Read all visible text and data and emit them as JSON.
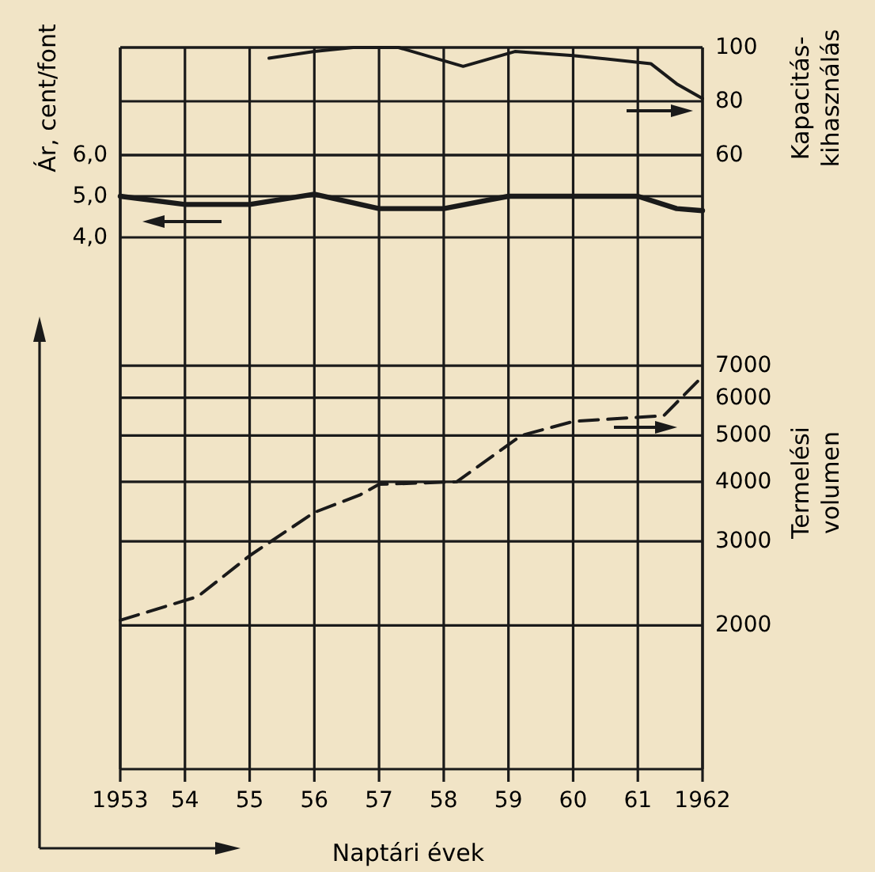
{
  "chart_data": [
    {
      "type": "line",
      "ylabel": "Ár, cent/font",
      "xlim": [
        1953,
        1962
      ],
      "ylim": [
        4,
        6
      ],
      "yticks": [
        {
          "value": 4,
          "label": "4,0"
        },
        {
          "value": 5,
          "label": "5,0"
        },
        {
          "value": 6,
          "label": "6,0"
        }
      ],
      "tick_labels": "y",
      "grid": true,
      "series": [
        {
          "color": "#1a1a1a",
          "line_style": "solid",
          "x": [
            1953,
            1954,
            1955,
            1956,
            1957,
            1958,
            1959,
            1960,
            1961,
            1961.6,
            1962
          ],
          "values": [
            5.0,
            4.8,
            4.8,
            5.05,
            4.7,
            4.7,
            5.0,
            5.0,
            5.0,
            4.7,
            4.65
          ]
        }
      ]
    },
    {
      "type": "line",
      "ylabel": "Kapacitás-\nkihasználás",
      "xlim": [
        1953,
        1962
      ],
      "ylim": [
        60,
        100
      ],
      "yticks": [
        60,
        80,
        100
      ],
      "tick_labels": "y",
      "grid": true,
      "series": [
        {
          "color": "#1a1a1a",
          "line_style": "solid",
          "x": [
            1955.3,
            1956,
            1956.6,
            1957.3,
            1958.3,
            1959.1,
            1960,
            1961.2,
            1961.6,
            1962
          ],
          "values": [
            96,
            98.5,
            100,
            100,
            93,
            98.5,
            97,
            94,
            86.5,
            81
          ]
        }
      ]
    },
    {
      "type": "line",
      "xlabel": "Naptári évek",
      "ylabel": "Termelési\nvolumen",
      "xlim": [
        1953,
        1962
      ],
      "xticks": [
        1953,
        {
          "value": 1954,
          "label": "54"
        },
        {
          "value": 1955,
          "label": "55"
        },
        {
          "value": 1956,
          "label": "56"
        },
        {
          "value": 1957,
          "label": "57"
        },
        {
          "value": 1958,
          "label": "58"
        },
        {
          "value": 1959,
          "label": "59"
        },
        {
          "value": 1960,
          "label": "60"
        },
        {
          "value": 1961,
          "label": "61"
        },
        1962
      ],
      "ylim": [
        1000,
        13000
      ],
      "yticks": [
        2000,
        3000,
        4000,
        5000,
        6000,
        7000
      ],
      "log": "y",
      "grid": true,
      "series": [
        {
          "color": "#1a1a1a",
          "line_style": "dashed",
          "x": [
            1953,
            1954.2,
            1955,
            1956,
            1956.7,
            1957,
            1958.2,
            1959.2,
            1960,
            1961.4,
            1962
          ],
          "values": [
            2050,
            2300,
            2800,
            3450,
            3750,
            3950,
            4000,
            5000,
            5350,
            5500,
            6650
          ]
        }
      ]
    }
  ]
}
